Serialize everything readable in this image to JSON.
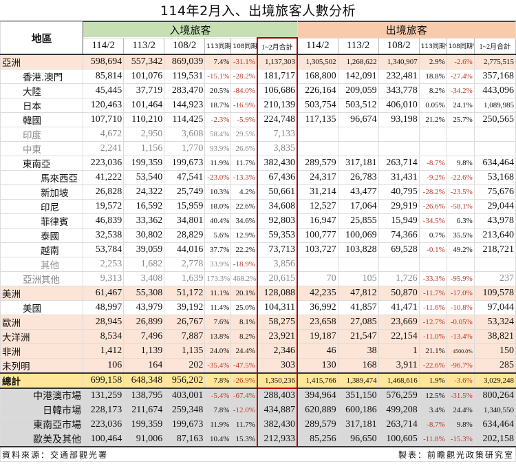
{
  "title": "114年2月入、出境旅客人數分析",
  "header": {
    "region": "地區",
    "inbound": "入境旅客",
    "outbound": "出境旅客",
    "columns": [
      "114/2",
      "113/2",
      "108/2",
      "113同期%",
      "108同期%",
      "1~2月合計"
    ]
  },
  "colors": {
    "inbound_header": "#c6e0b4",
    "outbound_header": "#f8cbad",
    "continent_row": "#fce4d6",
    "total_row": "#ffe699",
    "market_row": "#d9d9d9",
    "ytd_highlight_border": "#b00000",
    "negative_text": "#c0392b"
  },
  "rows": [
    {
      "label": "亞洲",
      "type": "continent",
      "in": [
        "598,694",
        "557,342",
        "869,039",
        "7.4%",
        "-31.1%",
        "1,137,303"
      ],
      "out": [
        "1,305,502",
        "1,268,622",
        "1,340,907",
        "2.9%",
        "-2.6%",
        "2,775,515"
      ]
    },
    {
      "label": "香港.澳門",
      "type": "sub1",
      "in": [
        "85,814",
        "101,076",
        "119,531",
        "-15.1%",
        "-28.2%",
        "181,717"
      ],
      "out": [
        "168,800",
        "142,091",
        "232,481",
        "18.8%",
        "-27.4%",
        "357,168"
      ]
    },
    {
      "label": "大陸",
      "type": "sub1",
      "in": [
        "45,445",
        "37,719",
        "283,470",
        "20.5%",
        "-84.0%",
        "106,686"
      ],
      "out": [
        "226,164",
        "209,059",
        "343,778",
        "8.2%",
        "-34.2%",
        "443,096"
      ]
    },
    {
      "label": "日本",
      "type": "sub1",
      "in": [
        "120,463",
        "101,464",
        "144,923",
        "18.7%",
        "-16.9%",
        "210,139"
      ],
      "out": [
        "503,754",
        "503,512",
        "406,010",
        "0.05%",
        "24.1%",
        "1,089,985"
      ]
    },
    {
      "label": "韓國",
      "type": "sub1",
      "in": [
        "107,710",
        "110,210",
        "114,425",
        "-2.3%",
        "-5.9%",
        "224,748"
      ],
      "out": [
        "117,135",
        "96,674",
        "93,198",
        "21.2%",
        "25.7%",
        "250,565"
      ]
    },
    {
      "label": "印度",
      "type": "sub1 gray",
      "in": [
        "4,672",
        "2,950",
        "3,608",
        "58.4%",
        "29.5%",
        "7,133"
      ],
      "out": [
        "",
        "",
        "",
        "",
        "",
        ""
      ]
    },
    {
      "label": "中東",
      "type": "sub1 gray",
      "in": [
        "2,241",
        "1,156",
        "1,770",
        "93.9%",
        "26.6%",
        "3,835"
      ],
      "out": [
        "",
        "",
        "",
        "",
        "",
        ""
      ]
    },
    {
      "label": "東南亞",
      "type": "sub1",
      "in": [
        "223,036",
        "199,359",
        "199,673",
        "11.9%",
        "11.7%",
        "382,430"
      ],
      "out": [
        "289,579",
        "317,181",
        "263,714",
        "-8.7%",
        "9.8%",
        "634,464"
      ]
    },
    {
      "label": "馬來西亞",
      "type": "sub2",
      "in": [
        "41,222",
        "53,540",
        "47,541",
        "-23.0%",
        "-13.3%",
        "67,436"
      ],
      "out": [
        "24,317",
        "26,783",
        "31,431",
        "-9.2%",
        "-22.6%",
        "53,168"
      ]
    },
    {
      "label": "新加坡",
      "type": "sub2",
      "in": [
        "26,828",
        "24,322",
        "25,749",
        "10.3%",
        "4.2%",
        "50,661"
      ],
      "out": [
        "31,214",
        "43,477",
        "40,795",
        "-28.2%",
        "-23.5%",
        "75,676"
      ]
    },
    {
      "label": "印尼",
      "type": "sub2",
      "in": [
        "19,572",
        "16,592",
        "15,959",
        "18.0%",
        "22.6%",
        "34,608"
      ],
      "out": [
        "12,527",
        "17,064",
        "29,919",
        "-26.6%",
        "-58.1%",
        "29,044"
      ]
    },
    {
      "label": "菲律賓",
      "type": "sub2",
      "in": [
        "46,839",
        "33,362",
        "34,801",
        "40.4%",
        "34.6%",
        "92,803"
      ],
      "out": [
        "16,947",
        "25,855",
        "15,949",
        "-34.5%",
        "6.3%",
        "43,978"
      ]
    },
    {
      "label": "泰國",
      "type": "sub2",
      "in": [
        "32,538",
        "30,802",
        "28,829",
        "5.6%",
        "12.9%",
        "59,353"
      ],
      "out": [
        "100,777",
        "100,069",
        "74,366",
        "0.7%",
        "35.5%",
        "213,640"
      ]
    },
    {
      "label": "越南",
      "type": "sub2",
      "in": [
        "53,784",
        "39,059",
        "44,016",
        "37.7%",
        "22.2%",
        "73,713"
      ],
      "out": [
        "103,727",
        "103,828",
        "69,528",
        "-0.1%",
        "49.2%",
        "218,721"
      ]
    },
    {
      "label": "其他",
      "type": "sub2 gray",
      "in": [
        "2,253",
        "1,682",
        "2,778",
        "33.9%",
        "-18.9%",
        "3,856"
      ],
      "out": [
        "",
        "",
        "",
        "",
        "",
        ""
      ]
    },
    {
      "label": "亞洲其他",
      "type": "sub1 gray",
      "in": [
        "9,313",
        "3,408",
        "1,639",
        "173.3%",
        "468.2%",
        "20,615"
      ],
      "out": [
        "70",
        "105",
        "1,726",
        "-33.3%",
        "-95.9%",
        "237"
      ]
    },
    {
      "label": "美洲",
      "type": "continent",
      "in": [
        "61,467",
        "55,308",
        "51,172",
        "11.1%",
        "20.1%",
        "128,088"
      ],
      "out": [
        "42,235",
        "47,812",
        "50,870",
        "-11.7%",
        "-17.0%",
        "109,578"
      ]
    },
    {
      "label": "美國",
      "type": "sub1",
      "in": [
        "48,997",
        "43,979",
        "39,192",
        "11.4%",
        "25.0%",
        "104,311"
      ],
      "out": [
        "36,992",
        "41,857",
        "41,471",
        "-11.6%",
        "-10.8%",
        "97,044"
      ]
    },
    {
      "label": "歐洲",
      "type": "continent",
      "in": [
        "28,945",
        "26,899",
        "26,767",
        "7.6%",
        "8.1%",
        "58,275"
      ],
      "out": [
        "23,658",
        "27,085",
        "23,669",
        "-12.7%",
        "-0.05%",
        "53,324"
      ]
    },
    {
      "label": "大洋洲",
      "type": "continent",
      "in": [
        "8,534",
        "7,496",
        "7,887",
        "13.8%",
        "8.2%",
        "23,921"
      ],
      "out": [
        "19,187",
        "21,547",
        "22,154",
        "-11.0%",
        "-13.4%",
        "38,821"
      ]
    },
    {
      "label": "非洲",
      "type": "continent",
      "in": [
        "1,412",
        "1,139",
        "1,135",
        "24.0%",
        "24.4%",
        "2,346"
      ],
      "out": [
        "46",
        "38",
        "1",
        "21.1%",
        "4500.0%",
        "150"
      ]
    },
    {
      "label": "未列明",
      "type": "continent",
      "in": [
        "106",
        "164",
        "202",
        "-35.4%",
        "-47.5%",
        "303"
      ],
      "out": [
        "130",
        "168",
        "3,911",
        "-22.6%",
        "-96.7%",
        "285"
      ]
    },
    {
      "label": "總計",
      "type": "total",
      "in": [
        "699,158",
        "648,348",
        "956,202",
        "7.8%",
        "-26.9%",
        "1,350,236"
      ],
      "out": [
        "1,415,766",
        "1,389,474",
        "1,468,616",
        "1.9%",
        "-3.6%",
        "3,029,248"
      ]
    },
    {
      "label": "中港澳市場",
      "type": "market",
      "in": [
        "131,259",
        "138,795",
        "403,001",
        "-5.4%",
        "-67.4%",
        "288,403"
      ],
      "out": [
        "394,964",
        "351,150",
        "576,259",
        "12.5%",
        "-31.5%",
        "800,264"
      ]
    },
    {
      "label": "日韓市場",
      "type": "market",
      "in": [
        "228,173",
        "211,674",
        "259,348",
        "7.8%",
        "-12.0%",
        "434,887"
      ],
      "out": [
        "620,889",
        "600,186",
        "499,208",
        "3.4%",
        "24.4%",
        "1,340,550"
      ]
    },
    {
      "label": "東南亞市場",
      "type": "market",
      "in": [
        "223,036",
        "199,359",
        "199,673",
        "11.9%",
        "11.7%",
        "382,430"
      ],
      "out": [
        "289,579",
        "317,181",
        "263,714",
        "-8.7%",
        "9.8%",
        "634,464"
      ]
    },
    {
      "label": "歐美及其他",
      "type": "market",
      "in": [
        "100,464",
        "91,006",
        "87,163",
        "10.4%",
        "15.3%",
        "212,933"
      ],
      "out": [
        "85,256",
        "96,650",
        "100,605",
        "-11.8%",
        "-15.3%",
        "202,158"
      ]
    }
  ],
  "footer": {
    "source": "資料來源：交通部觀光署",
    "producer": "製表：前瞻觀光政策研究室"
  }
}
